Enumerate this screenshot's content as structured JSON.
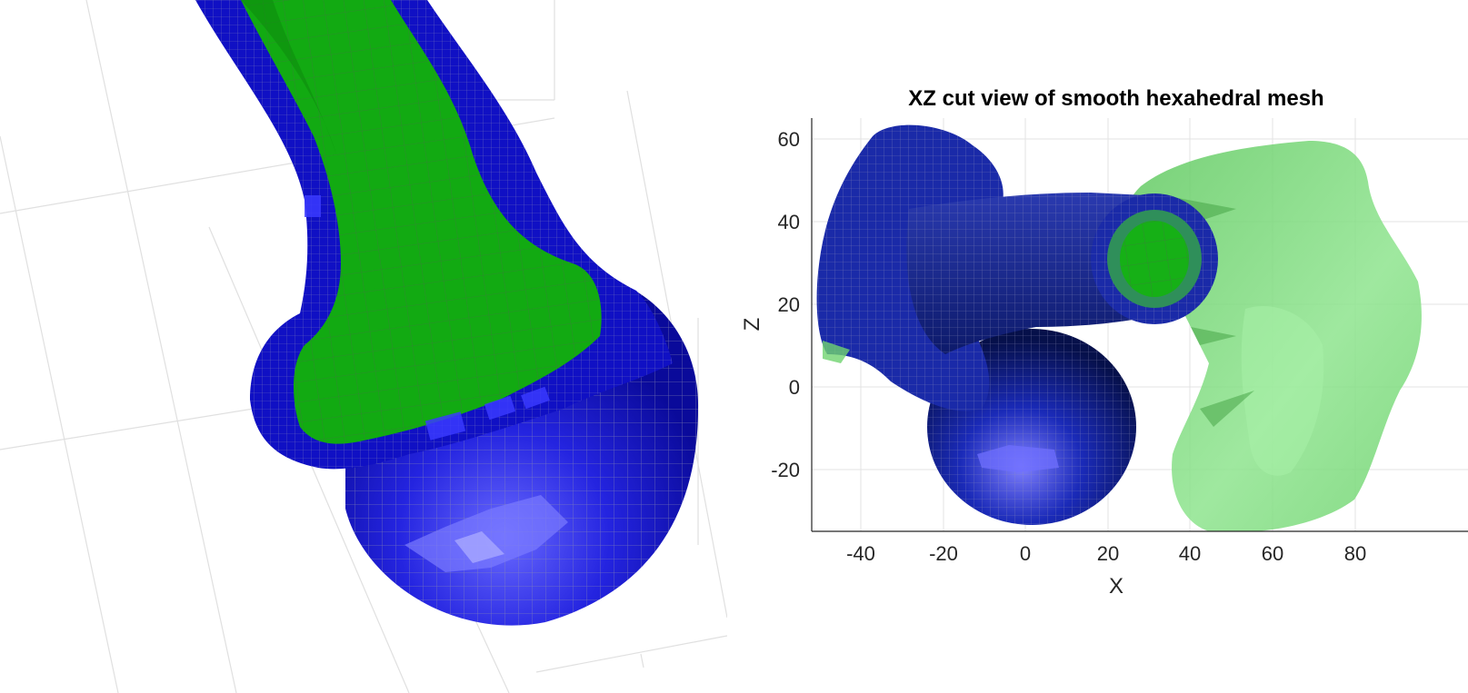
{
  "figure": {
    "right_panel": {
      "title": "XZ cut view of smooth hexahedral mesh",
      "xlabel": "X",
      "ylabel": "Z",
      "x_ticks": [
        "-40",
        "-20",
        "0",
        "20",
        "40",
        "60",
        "80"
      ],
      "y_ticks": [
        "60",
        "40",
        "20",
        "0",
        "-20"
      ],
      "xlim": [
        -53,
        97
      ],
      "ylim": [
        -35,
        65
      ]
    },
    "colors": {
      "mesh_blue": "#1414c8",
      "mesh_green": "#15b015",
      "transparent_green": "#6fd36f",
      "grid": "#e3e3e3"
    }
  }
}
